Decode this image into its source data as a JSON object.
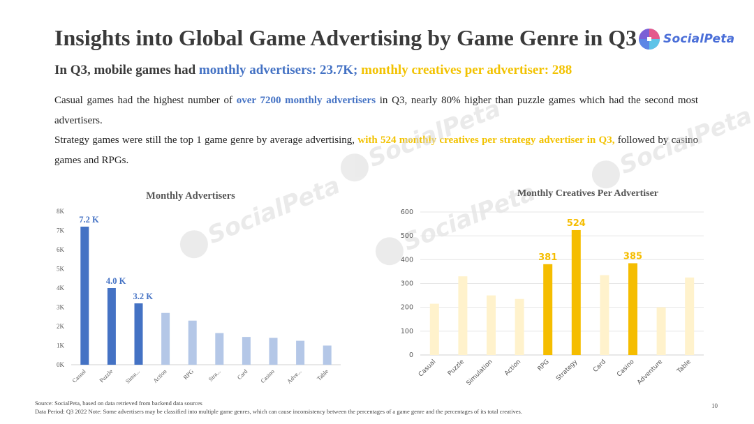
{
  "header": {
    "title": "Insights into Global Game Advertising by Game Genre in Q3",
    "logo_text": "SocialPeta",
    "subtitle_prefix": "In Q3, mobile games had ",
    "subtitle_blue": "monthly advertisers: 23.7K;",
    "subtitle_yellow": " monthly creatives per advertiser: 288"
  },
  "body": {
    "p1_a": "Casual games had the highest number of ",
    "p1_hl": "over 7200 monthly advertisers",
    "p1_b": " in Q3, nearly 80% higher than puzzle games which had the second most advertisers.",
    "p2_a": "Strategy games were still the top 1 game genre by average advertising, ",
    "p2_hl": "with 524 monthly creatives per strategy advertiser in Q3,",
    "p2_b": " followed by casino games and RPGs."
  },
  "watermark": {
    "text": "SocialPeta"
  },
  "footer": {
    "source": "Source: SocialPeta, based on data retrieved from backend data sources",
    "note": "Data Period: Q3 2022  Note: Some advertisers may be classified into multiple game genres, which can cause inconsistency between the percentages of a game genre and the percentages of its total creatives.",
    "page": "10"
  },
  "colors": {
    "blue_strong": "#4472c4",
    "blue_light": "#b4c7e7",
    "yellow_strong": "#f5bd00",
    "yellow_light": "#fff2cc"
  },
  "chart_data": [
    {
      "type": "bar",
      "title": "Monthly Advertisers",
      "categories": [
        "Casual",
        "Puzzle",
        "Simu...",
        "Action",
        "RPG",
        "Stra...",
        "Card",
        "Casino",
        "Adve...",
        "Table"
      ],
      "values": [
        7.2,
        4.0,
        3.2,
        2.7,
        2.3,
        1.65,
        1.45,
        1.4,
        1.25,
        1.0
      ],
      "highlight": [
        true,
        true,
        true,
        false,
        false,
        false,
        false,
        false,
        false,
        false
      ],
      "data_labels": [
        "7.2 K",
        "4.0 K",
        "3.2 K",
        "",
        "",
        "",
        "",
        "",
        "",
        ""
      ],
      "yticks": [
        "0K",
        "1K",
        "2K",
        "3K",
        "4K",
        "5K",
        "6K",
        "7K",
        "8K"
      ],
      "ylim": [
        0,
        8
      ],
      "xlabel": "",
      "ylabel": ""
    },
    {
      "type": "bar",
      "title": "Monthly Creatives Per Advertiser",
      "categories": [
        "Casual",
        "Puzzle",
        "Simulation",
        "Action",
        "RPG",
        "Strategy",
        "Card",
        "Casino",
        "Adventure",
        "Table"
      ],
      "values": [
        215,
        330,
        250,
        235,
        381,
        524,
        335,
        385,
        200,
        325
      ],
      "highlight": [
        false,
        false,
        false,
        false,
        true,
        true,
        false,
        true,
        false,
        false
      ],
      "data_labels": [
        "",
        "",
        "",
        "",
        "381",
        "524",
        "",
        "385",
        "",
        ""
      ],
      "yticks": [
        "0",
        "100",
        "200",
        "300",
        "400",
        "500",
        "600"
      ],
      "ylim": [
        0,
        600
      ],
      "xlabel": "",
      "ylabel": ""
    }
  ]
}
